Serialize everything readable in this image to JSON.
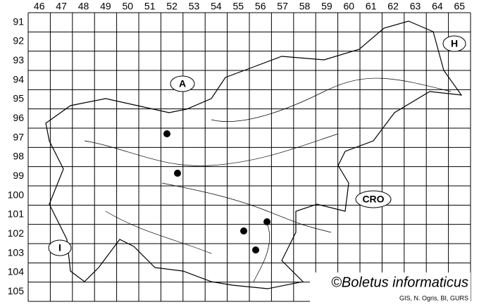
{
  "columns": [
    46,
    47,
    48,
    49,
    50,
    51,
    52,
    53,
    54,
    55,
    56,
    57,
    58,
    59,
    60,
    61,
    62,
    63,
    64,
    65
  ],
  "rows": [
    91,
    92,
    93,
    94,
    95,
    96,
    97,
    98,
    99,
    100,
    101,
    102,
    103,
    104,
    105
  ],
  "labels": {
    "austria": "A",
    "hungary": "H",
    "croatia": "CRO",
    "italy": "I"
  },
  "credit": {
    "title": "©Boletus informaticus",
    "source": "GIS, N. Ogris, BI, GURS"
  }
}
